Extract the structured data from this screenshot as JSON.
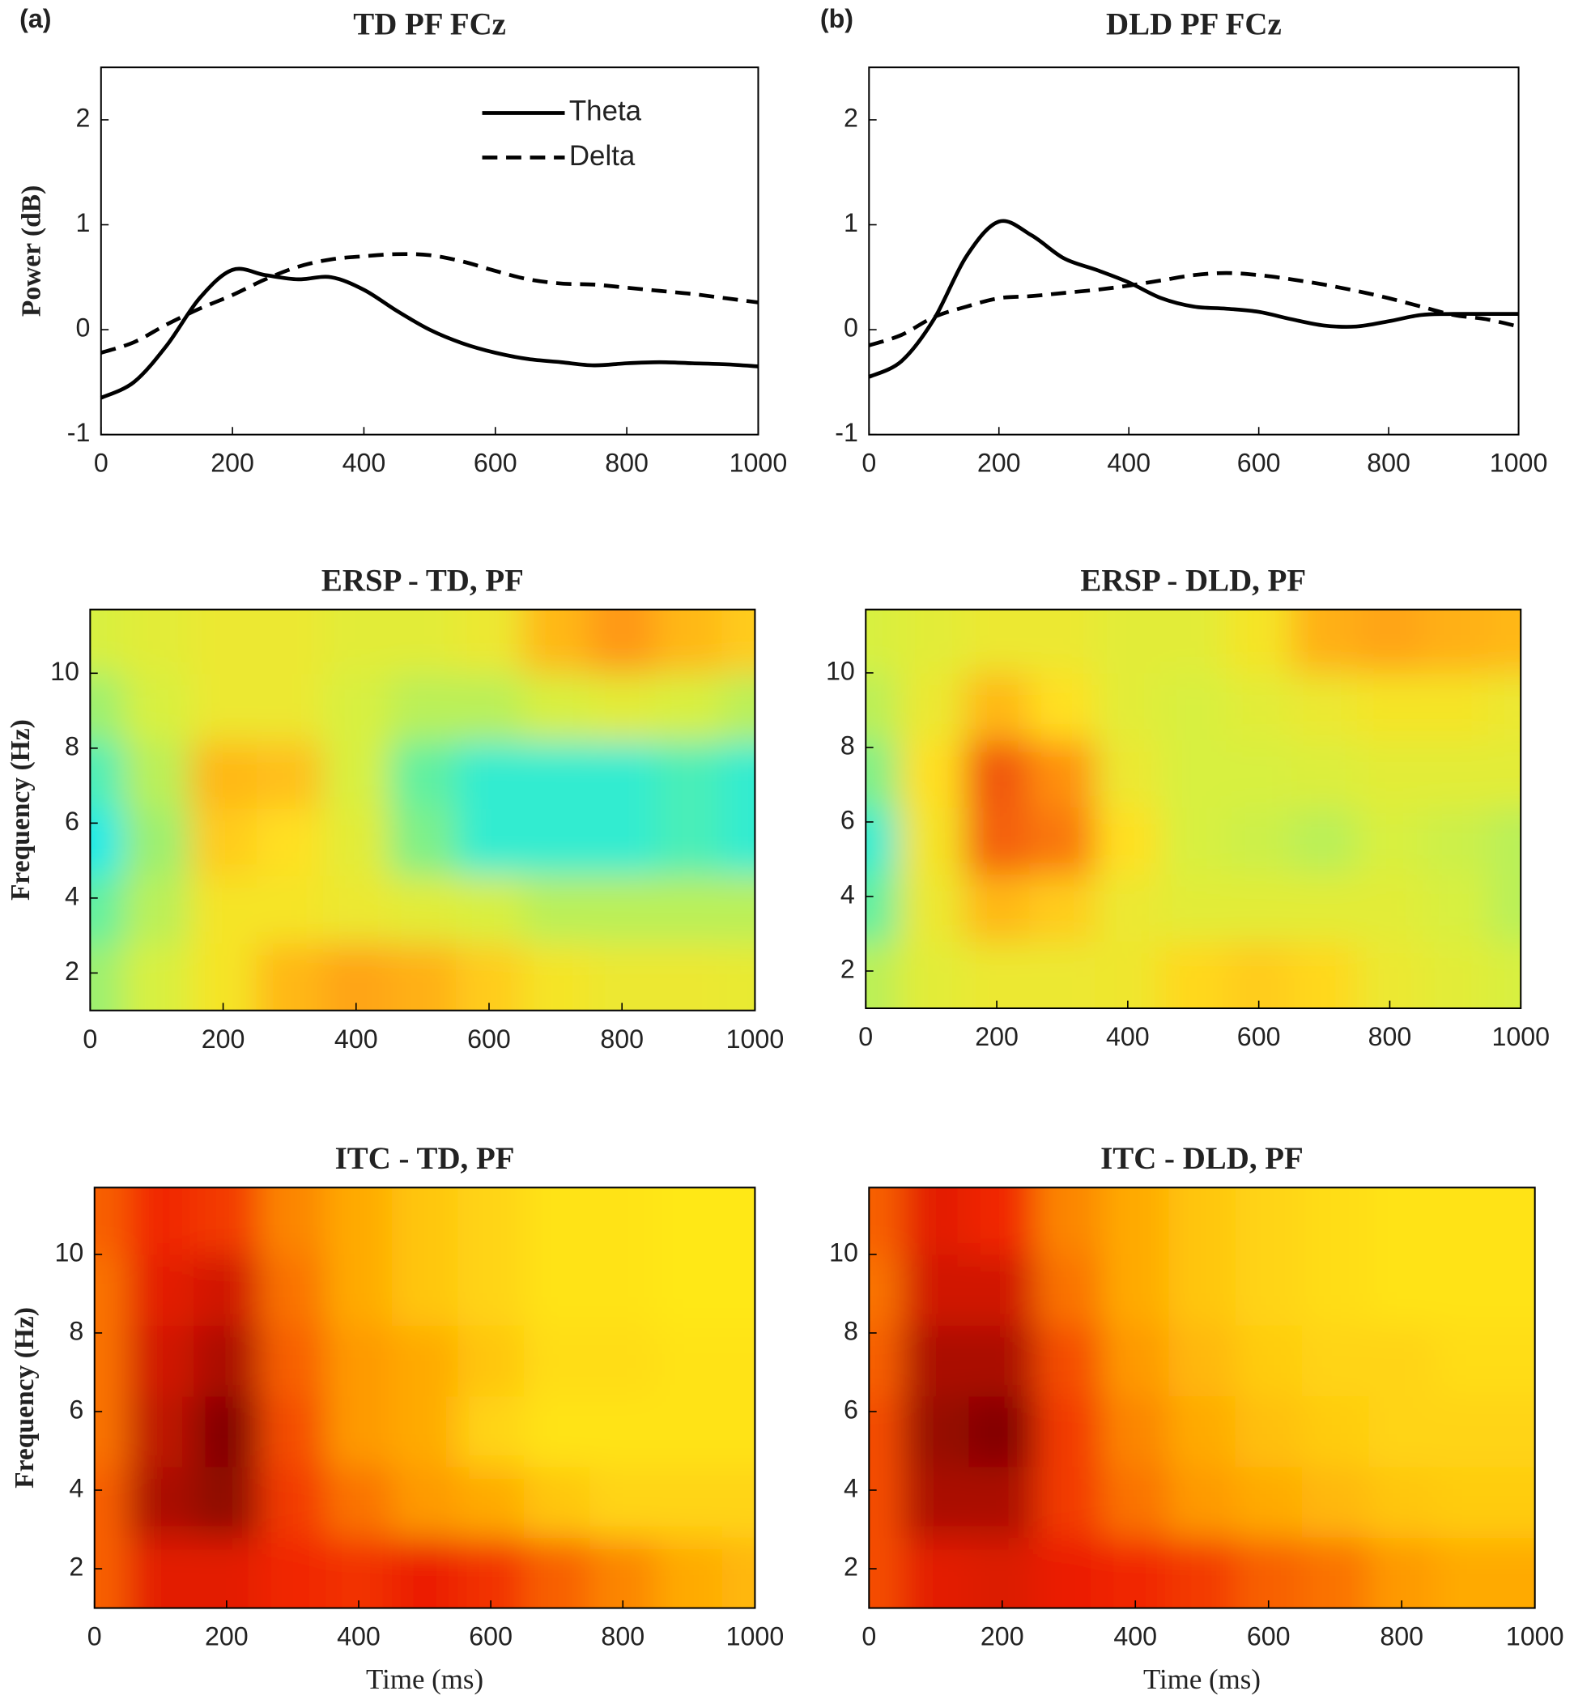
{
  "chart_data": [
    {
      "type": "line",
      "panel": "(a)",
      "title": "TD PF FCz",
      "ylabel": "Power (dB)",
      "legend": "top",
      "x": [
        0,
        50,
        100,
        150,
        200,
        250,
        300,
        350,
        400,
        450,
        500,
        550,
        600,
        650,
        700,
        750,
        800,
        850,
        900,
        950,
        1000
      ],
      "series": [
        {
          "name": "Theta",
          "color": "#000000",
          "style": "solid",
          "values": [
            -0.65,
            -0.5,
            -0.15,
            0.3,
            0.57,
            0.52,
            0.48,
            0.5,
            0.38,
            0.18,
            0.0,
            -0.13,
            -0.22,
            -0.28,
            -0.31,
            -0.34,
            -0.32,
            -0.31,
            -0.32,
            -0.33,
            -0.35
          ]
        },
        {
          "name": "Delta",
          "color": "#000000",
          "style": "dashed",
          "values": [
            -0.22,
            -0.12,
            0.05,
            0.2,
            0.33,
            0.48,
            0.6,
            0.67,
            0.7,
            0.72,
            0.71,
            0.65,
            0.56,
            0.48,
            0.44,
            0.43,
            0.4,
            0.37,
            0.34,
            0.3,
            0.26
          ]
        }
      ],
      "xlim": [
        0,
        1000
      ],
      "xticks": [
        0,
        200,
        400,
        600,
        800,
        1000
      ],
      "ylim": [
        -1,
        2.5
      ],
      "yticks": [
        -1,
        0,
        1,
        2
      ]
    },
    {
      "type": "line",
      "panel": "(b)",
      "title": "DLD PF FCz",
      "x": [
        0,
        50,
        100,
        150,
        200,
        250,
        300,
        350,
        400,
        450,
        500,
        550,
        600,
        650,
        700,
        750,
        800,
        850,
        900,
        950,
        1000
      ],
      "series": [
        {
          "color": "#000000",
          "style": "solid",
          "values": [
            -0.45,
            -0.3,
            0.1,
            0.7,
            1.03,
            0.9,
            0.68,
            0.57,
            0.45,
            0.3,
            0.22,
            0.2,
            0.17,
            0.1,
            0.04,
            0.03,
            0.08,
            0.14,
            0.15,
            0.15,
            0.15
          ]
        },
        {
          "color": "#000000",
          "style": "dashed",
          "values": [
            -0.15,
            -0.05,
            0.12,
            0.22,
            0.3,
            0.32,
            0.35,
            0.38,
            0.42,
            0.47,
            0.52,
            0.54,
            0.52,
            0.48,
            0.43,
            0.37,
            0.3,
            0.22,
            0.14,
            0.1,
            0.03
          ]
        }
      ],
      "xlim": [
        0,
        1000
      ],
      "xticks": [
        0,
        200,
        400,
        600,
        800,
        1000
      ],
      "ylim": [
        -1,
        2.5
      ],
      "yticks": [
        -1,
        0,
        1,
        2
      ]
    },
    {
      "type": "heatmap",
      "title": "ERSP - TD, PF",
      "ylabel": "Frequency (Hz)",
      "x": [
        0,
        100,
        200,
        300,
        400,
        500,
        600,
        700,
        800,
        900,
        1000
      ],
      "y": [
        1.9,
        3.7,
        5.5,
        7.3,
        9.1,
        10.9
      ],
      "z": [
        [
          0.3,
          0.4,
          0.55,
          0.7,
          0.75,
          0.72,
          0.65,
          0.55,
          0.5,
          0.5,
          0.48
        ],
        [
          0.2,
          0.35,
          0.55,
          0.55,
          0.5,
          0.45,
          0.4,
          0.35,
          0.35,
          0.35,
          0.35
        ],
        [
          0.05,
          0.3,
          0.65,
          0.6,
          0.45,
          0.25,
          0.1,
          0.1,
          0.1,
          0.15,
          0.1
        ],
        [
          0.15,
          0.35,
          0.7,
          0.68,
          0.4,
          0.2,
          0.1,
          0.1,
          0.1,
          0.15,
          0.1
        ],
        [
          0.3,
          0.4,
          0.5,
          0.5,
          0.4,
          0.35,
          0.35,
          0.4,
          0.45,
          0.4,
          0.35
        ],
        [
          0.4,
          0.45,
          0.5,
          0.5,
          0.45,
          0.45,
          0.5,
          0.7,
          0.78,
          0.7,
          0.65
        ]
      ],
      "zlim": [
        0,
        1
      ],
      "colormap": [
        "#00e8ff",
        "#60f0a0",
        "#d8f040",
        "#ffe020",
        "#ff9010",
        "#e83010"
      ],
      "xlim": [
        0,
        1000
      ],
      "xticks": [
        0,
        200,
        400,
        600,
        800,
        1000
      ],
      "ylim": [
        1,
        11.7
      ],
      "yticks": [
        2,
        4,
        6,
        8,
        10
      ]
    },
    {
      "type": "heatmap",
      "title": "ERSP - DLD, PF",
      "x": [
        0,
        100,
        200,
        300,
        400,
        500,
        600,
        700,
        800,
        900,
        1000
      ],
      "y": [
        1.9,
        3.7,
        5.5,
        7.3,
        9.1,
        10.9
      ],
      "z": [
        [
          0.35,
          0.45,
          0.5,
          0.5,
          0.52,
          0.62,
          0.65,
          0.62,
          0.5,
          0.45,
          0.4
        ],
        [
          0.2,
          0.5,
          0.7,
          0.65,
          0.5,
          0.45,
          0.45,
          0.45,
          0.45,
          0.4,
          0.35
        ],
        [
          0.1,
          0.55,
          0.9,
          0.85,
          0.6,
          0.4,
          0.38,
          0.35,
          0.4,
          0.38,
          0.35
        ],
        [
          0.25,
          0.6,
          0.92,
          0.8,
          0.5,
          0.4,
          0.4,
          0.42,
          0.45,
          0.45,
          0.45
        ],
        [
          0.35,
          0.5,
          0.7,
          0.6,
          0.45,
          0.4,
          0.45,
          0.5,
          0.55,
          0.55,
          0.5
        ],
        [
          0.4,
          0.45,
          0.5,
          0.5,
          0.45,
          0.45,
          0.55,
          0.72,
          0.75,
          0.72,
          0.7
        ]
      ],
      "zlim": [
        0,
        1
      ],
      "colormap": [
        "#00e8ff",
        "#60f0a0",
        "#d8f040",
        "#ffe020",
        "#ff9010",
        "#e83010"
      ],
      "xlim": [
        0,
        1000
      ],
      "xticks": [
        0,
        200,
        400,
        600,
        800,
        1000
      ],
      "ylim": [
        1,
        11.7
      ],
      "yticks": [
        2,
        4,
        6,
        8,
        10
      ]
    },
    {
      "type": "heatmap",
      "title": "ITC - TD, PF",
      "ylabel": "Frequency (Hz)",
      "xlabel": "Time (ms)",
      "x": [
        0,
        100,
        200,
        300,
        400,
        500,
        600,
        700,
        800,
        900,
        1000
      ],
      "y": [
        1.9,
        3.7,
        5.5,
        7.3,
        9.1,
        10.9
      ],
      "z": [
        [
          0.5,
          0.7,
          0.7,
          0.65,
          0.62,
          0.68,
          0.62,
          0.5,
          0.4,
          0.3,
          0.25
        ],
        [
          0.5,
          0.85,
          0.92,
          0.6,
          0.45,
          0.35,
          0.3,
          0.2,
          0.15,
          0.15,
          0.15
        ],
        [
          0.45,
          0.8,
          0.95,
          0.55,
          0.35,
          0.3,
          0.15,
          0.1,
          0.1,
          0.1,
          0.1
        ],
        [
          0.45,
          0.75,
          0.85,
          0.5,
          0.35,
          0.3,
          0.2,
          0.12,
          0.12,
          0.1,
          0.1
        ],
        [
          0.45,
          0.7,
          0.75,
          0.45,
          0.3,
          0.2,
          0.15,
          0.1,
          0.1,
          0.08,
          0.08
        ],
        [
          0.5,
          0.65,
          0.6,
          0.4,
          0.3,
          0.2,
          0.15,
          0.1,
          0.1,
          0.08,
          0.08
        ]
      ],
      "zlim": [
        0,
        1
      ],
      "colormap": [
        "#ffff20",
        "#ffa000",
        "#f02000",
        "#700000"
      ],
      "xlim": [
        0,
        1000
      ],
      "xticks": [
        0,
        200,
        400,
        600,
        800,
        1000
      ],
      "ylim": [
        1,
        11.7
      ],
      "yticks": [
        2,
        4,
        6,
        8,
        10
      ]
    },
    {
      "type": "heatmap",
      "title": "ITC - DLD, PF",
      "xlabel": "Time (ms)",
      "x": [
        0,
        100,
        200,
        300,
        400,
        500,
        600,
        700,
        800,
        900,
        1000
      ],
      "y": [
        1.9,
        3.7,
        5.5,
        7.3,
        9.1,
        10.9
      ],
      "z": [
        [
          0.55,
          0.7,
          0.72,
          0.68,
          0.65,
          0.6,
          0.5,
          0.45,
          0.35,
          0.3,
          0.3
        ],
        [
          0.55,
          0.85,
          0.85,
          0.6,
          0.45,
          0.35,
          0.3,
          0.25,
          0.2,
          0.18,
          0.18
        ],
        [
          0.55,
          0.9,
          0.95,
          0.6,
          0.4,
          0.3,
          0.22,
          0.18,
          0.15,
          0.15,
          0.15
        ],
        [
          0.5,
          0.85,
          0.85,
          0.55,
          0.35,
          0.25,
          0.18,
          0.15,
          0.15,
          0.12,
          0.12
        ],
        [
          0.45,
          0.75,
          0.75,
          0.45,
          0.3,
          0.2,
          0.15,
          0.12,
          0.1,
          0.1,
          0.1
        ],
        [
          0.5,
          0.7,
          0.65,
          0.4,
          0.3,
          0.2,
          0.15,
          0.12,
          0.1,
          0.1,
          0.1
        ]
      ],
      "zlim": [
        0,
        1
      ],
      "colormap": [
        "#ffff20",
        "#ffa000",
        "#f02000",
        "#700000"
      ],
      "xlim": [
        0,
        1000
      ],
      "xticks": [
        0,
        200,
        400,
        600,
        800,
        1000
      ],
      "ylim": [
        1,
        11.7
      ],
      "yticks": [
        2,
        4,
        6,
        8,
        10
      ]
    }
  ]
}
